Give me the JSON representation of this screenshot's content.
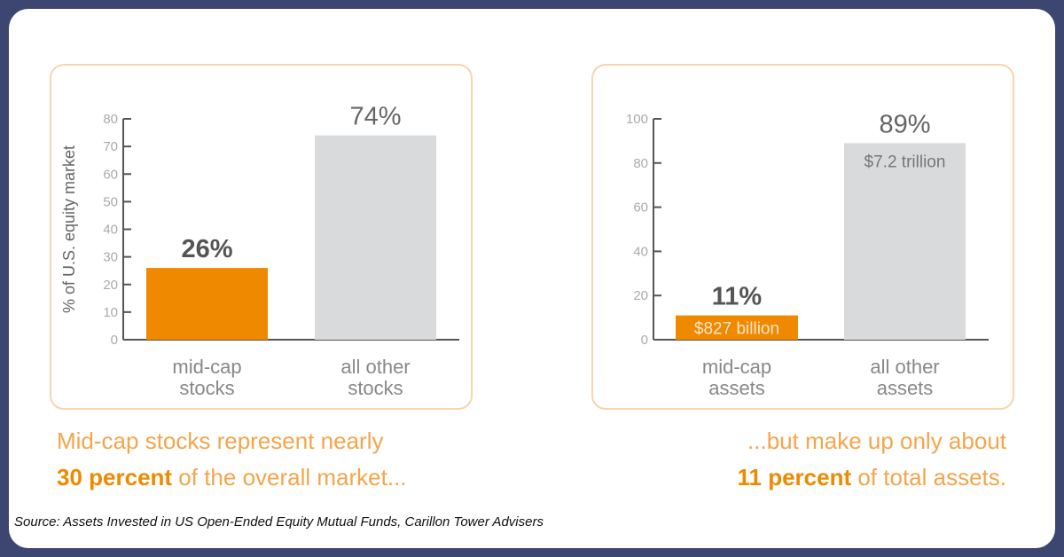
{
  "colors": {
    "accent": "#ef8a00",
    "other": "#d9dadc",
    "axis": "#555555",
    "frame": "#3d4670"
  },
  "chart_data": [
    {
      "type": "bar",
      "title": "",
      "ylabel": "% of U.S. equity market",
      "ylim": [
        0,
        80
      ],
      "yticks": [
        0,
        10,
        20,
        30,
        40,
        50,
        60,
        70,
        80
      ],
      "categories": [
        "mid-cap stocks",
        "all other stocks"
      ],
      "category_lines": [
        [
          "mid-cap",
          "stocks"
        ],
        [
          "all other",
          "stocks"
        ]
      ],
      "values": [
        26,
        74
      ],
      "data_labels": [
        "26%",
        "74%"
      ],
      "inner_labels": [
        "",
        ""
      ]
    },
    {
      "type": "bar",
      "title": "",
      "ylabel": "",
      "ylim": [
        0,
        100
      ],
      "yticks": [
        0,
        20,
        40,
        60,
        80,
        100
      ],
      "categories": [
        "mid-cap assets",
        "all other assets"
      ],
      "category_lines": [
        [
          "mid-cap",
          "assets"
        ],
        [
          "all other",
          "assets"
        ]
      ],
      "values": [
        11,
        89
      ],
      "data_labels": [
        "11%",
        "89%"
      ],
      "inner_labels": [
        "$827 billion",
        "$7.2 trillion"
      ]
    }
  ],
  "captions": {
    "left": {
      "line1": "Mid-cap stocks represent nearly",
      "bold": "30 percent",
      "rest": " of the overall market..."
    },
    "right": {
      "line1": "...but make up only about",
      "bold": "11 percent",
      "rest": " of total assets."
    }
  },
  "source": "Source: Assets Invested in US Open-Ended Equity Mutual Funds, Carillon Tower Advisers"
}
